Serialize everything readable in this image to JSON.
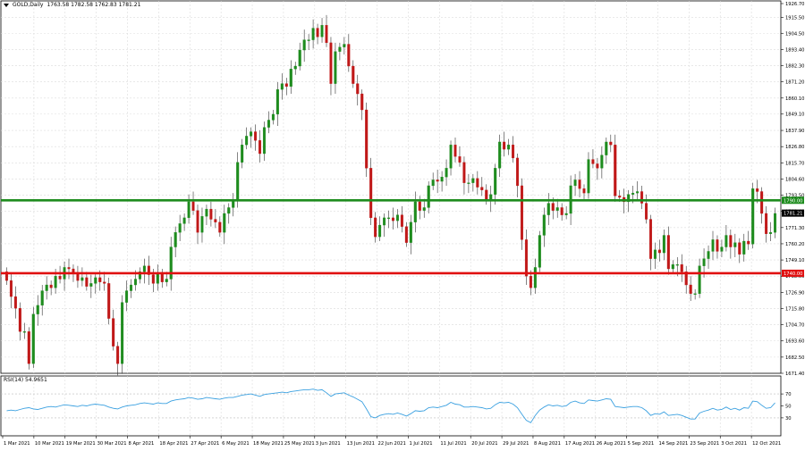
{
  "header": {
    "symbol": "GOLD,Daily",
    "ohlc": "1763.58 1782.58 1762.83 1781.21"
  },
  "rsi_label": "RSI(14) 54.9651",
  "levels": {
    "green": {
      "value": 1790.0,
      "label": "1790.00",
      "color": "#1e8c1e"
    },
    "red": {
      "value": 1740.0,
      "label": "1740.00",
      "color": "#e01010"
    },
    "current": {
      "value": 1781.21,
      "label": "1781.21"
    }
  },
  "colors": {
    "bull": "#1e8c1e",
    "bear": "#c01818",
    "rsi_line": "#3aa0e0",
    "grid": "#dcdcdc"
  },
  "chart_data": {
    "type": "candlestick",
    "title": "GOLD,Daily",
    "y_ticks": [
      "1926.70",
      "1915.50",
      "1904.50",
      "1893.40",
      "1882.30",
      "1871.20",
      "1860.10",
      "1849.10",
      "1837.90",
      "1826.80",
      "1815.70",
      "1804.60",
      "1793.50",
      "1782.40",
      "1771.30",
      "1760.20",
      "1749.10",
      "1738.00",
      "1726.90",
      "1715.80",
      "1704.70",
      "1693.60",
      "1682.50",
      "1671.40"
    ],
    "ylim": [
      1671.4,
      1926.7
    ],
    "x_labels": [
      "1 Mar 2021",
      "10 Mar 2021",
      "19 Mar 2021",
      "30 Mar 2021",
      "8 Apr 2021",
      "18 Apr 2021",
      "27 Apr 2021",
      "6 May 2021",
      "18 May 2021",
      "25 May 2021",
      "3 Jun 2021",
      "13 Jun 2021",
      "22 Jun 2021",
      "1 Jul 2021",
      "11 Jul 2021",
      "20 Jul 2021",
      "29 Jul 2021",
      "8 Aug 2021",
      "17 Aug 2021",
      "26 Aug 2021",
      "5 Sep 2021",
      "14 Sep 2021",
      "23 Sep 2021",
      "3 Oct 2021",
      "12 Oct 2021"
    ],
    "close": [
      1735,
      1724,
      1716,
      1700,
      1700,
      1678,
      1712,
      1718,
      1728,
      1732,
      1730,
      1738,
      1736,
      1744,
      1743,
      1740,
      1735,
      1737,
      1731,
      1733,
      1737,
      1734,
      1733,
      1709,
      1690,
      1678,
      1720,
      1728,
      1732,
      1736,
      1741,
      1745,
      1739,
      1733,
      1740,
      1734,
      1736,
      1758,
      1768,
      1774,
      1778,
      1789,
      1783,
      1768,
      1779,
      1784,
      1777,
      1775,
      1768,
      1781,
      1785,
      1790,
      1816,
      1828,
      1834,
      1837,
      1831,
      1822,
      1840,
      1845,
      1849,
      1866,
      1870,
      1868,
      1880,
      1882,
      1893,
      1900,
      1900,
      1908,
      1902,
      1910,
      1898,
      1870,
      1892,
      1895,
      1897,
      1882,
      1870,
      1863,
      1852,
      1812,
      1778,
      1765,
      1773,
      1778,
      1778,
      1776,
      1780,
      1772,
      1761,
      1775,
      1789,
      1783,
      1785,
      1800,
      1804,
      1803,
      1806,
      1812,
      1828,
      1820,
      1816,
      1802,
      1802,
      1805,
      1799,
      1797,
      1790,
      1794,
      1812,
      1830,
      1825,
      1828,
      1819,
      1800,
      1763,
      1738,
      1730,
      1744,
      1766,
      1780,
      1788,
      1783,
      1785,
      1780,
      1781,
      1800,
      1804,
      1798,
      1795,
      1818,
      1815,
      1812,
      1821,
      1830,
      1828,
      1793,
      1792,
      1789,
      1794,
      1795,
      1796,
      1788,
      1777,
      1750,
      1756,
      1754,
      1766,
      1743,
      1746,
      1746,
      1741,
      1732,
      1726,
      1726,
      1745,
      1750,
      1755,
      1763,
      1755,
      1758,
      1766,
      1758,
      1761,
      1753,
      1762,
      1760,
      1798,
      1796,
      1781,
      1767,
      1768,
      1781
    ],
    "rsi": [
      42,
      43,
      42,
      44,
      46,
      47,
      45,
      44,
      46,
      48,
      49,
      48,
      50,
      52,
      51,
      50,
      49,
      51,
      50,
      52,
      53,
      52,
      51,
      48,
      46,
      45,
      48,
      50,
      51,
      52,
      54,
      55,
      54,
      53,
      55,
      54,
      54,
      58,
      60,
      61,
      62,
      64,
      63,
      61,
      62,
      64,
      63,
      62,
      61,
      63,
      64,
      64,
      66,
      68,
      69,
      70,
      68,
      66,
      69,
      70,
      71,
      72,
      73,
      72,
      74,
      75,
      76,
      77,
      77,
      78,
      76,
      77,
      72,
      66,
      70,
      71,
      72,
      68,
      65,
      61,
      57,
      45,
      32,
      30,
      34,
      36,
      37,
      36,
      38,
      36,
      33,
      37,
      42,
      41,
      42,
      47,
      48,
      47,
      49,
      51,
      56,
      53,
      52,
      48,
      48,
      49,
      48,
      47,
      45,
      46,
      52,
      56,
      55,
      56,
      53,
      47,
      36,
      26,
      22,
      34,
      43,
      48,
      52,
      50,
      51,
      49,
      50,
      56,
      58,
      55,
      54,
      60,
      59,
      58,
      60,
      62,
      61,
      49,
      48,
      47,
      48,
      49,
      49,
      47,
      42,
      34,
      37,
      36,
      40,
      34,
      35,
      36,
      34,
      31,
      28,
      28,
      38,
      41,
      43,
      46,
      43,
      44,
      48,
      44,
      46,
      43,
      47,
      46,
      58,
      57,
      51,
      46,
      47,
      55
    ],
    "rsi_ticks": [
      "70",
      "50",
      "30"
    ],
    "rsi_ylim": [
      0,
      100
    ]
  }
}
